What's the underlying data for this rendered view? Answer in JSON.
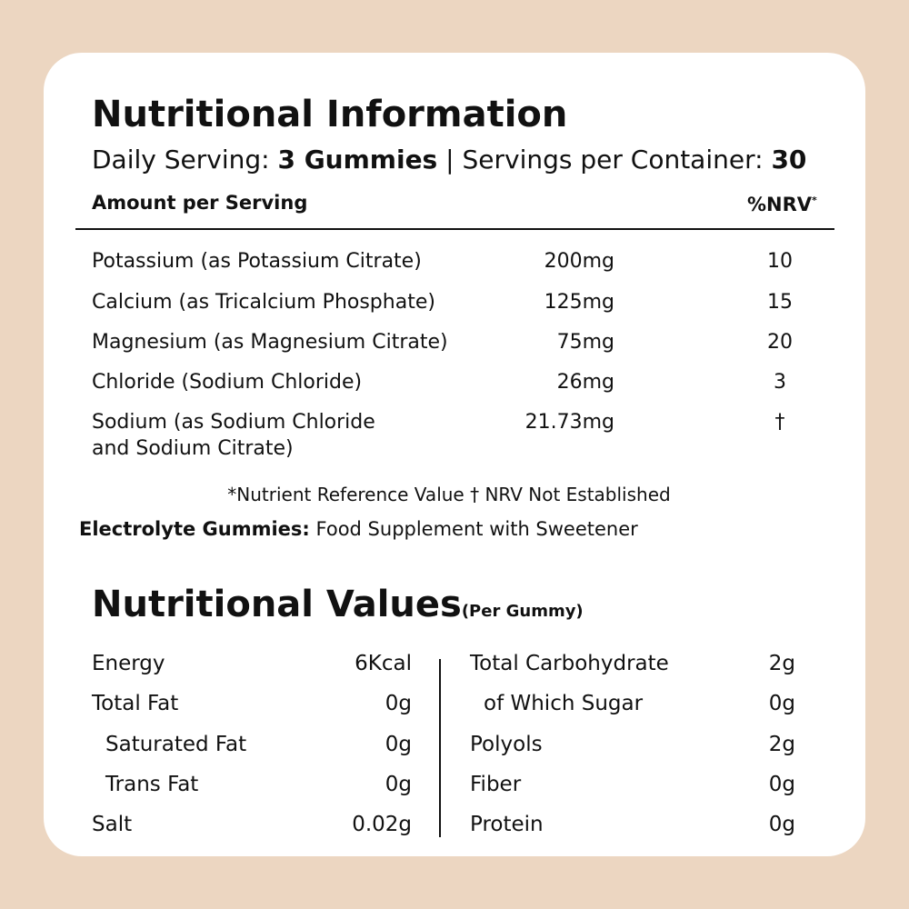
{
  "info": {
    "title": "Nutritional Information",
    "serving": {
      "label": "Daily Serving:",
      "amount": "3 Gummies",
      "separator": "|",
      "container_label": "Servings per Container:",
      "container_amount": "30"
    },
    "header": {
      "amount": "Amount per Serving",
      "nrv": "%NRV",
      "nrv_mark": "*"
    },
    "rows": [
      {
        "name": [
          "Potassium (as Potassium Citrate)"
        ],
        "amount": "200mg",
        "nrv": "10"
      },
      {
        "name": [
          "Calcium (as Tricalcium Phosphate)"
        ],
        "amount": "125mg",
        "nrv": "15"
      },
      {
        "name": [
          "Magnesium (as Magnesium Citrate)"
        ],
        "amount": "75mg",
        "nrv": "20"
      },
      {
        "name": [
          "Chloride (Sodium Chloride)"
        ],
        "amount": "26mg",
        "nrv": "3"
      },
      {
        "name": [
          "Sodium (as Sodium Chloride",
          "and Sodium Citrate)"
        ],
        "amount": "21.73mg",
        "nrv": "†"
      }
    ],
    "footnote": "*Nutrient Reference Value † NRV Not Established",
    "product": {
      "name": "Electrolyte Gummies:",
      "description": "Food Supplement with Sweetener"
    }
  },
  "values": {
    "title": "Nutritional Values",
    "subtitle": "(Per Gummy)",
    "left": [
      {
        "label": "Energy",
        "value": "6Kcal"
      },
      {
        "label": "Total Fat",
        "value": "0g"
      },
      {
        "label": "Saturated Fat",
        "value": "0g"
      },
      {
        "label": "Trans Fat",
        "value": "0g"
      },
      {
        "label": "Salt",
        "value": "0.02g"
      }
    ],
    "right": [
      {
        "label": "Total Carbohydrate",
        "value": "2g"
      },
      {
        "label": "of Which Sugar",
        "value": "0g"
      },
      {
        "label": "Polyols",
        "value": "2g"
      },
      {
        "label": "Fiber",
        "value": "0g"
      },
      {
        "label": "Protein",
        "value": "0g"
      }
    ]
  }
}
